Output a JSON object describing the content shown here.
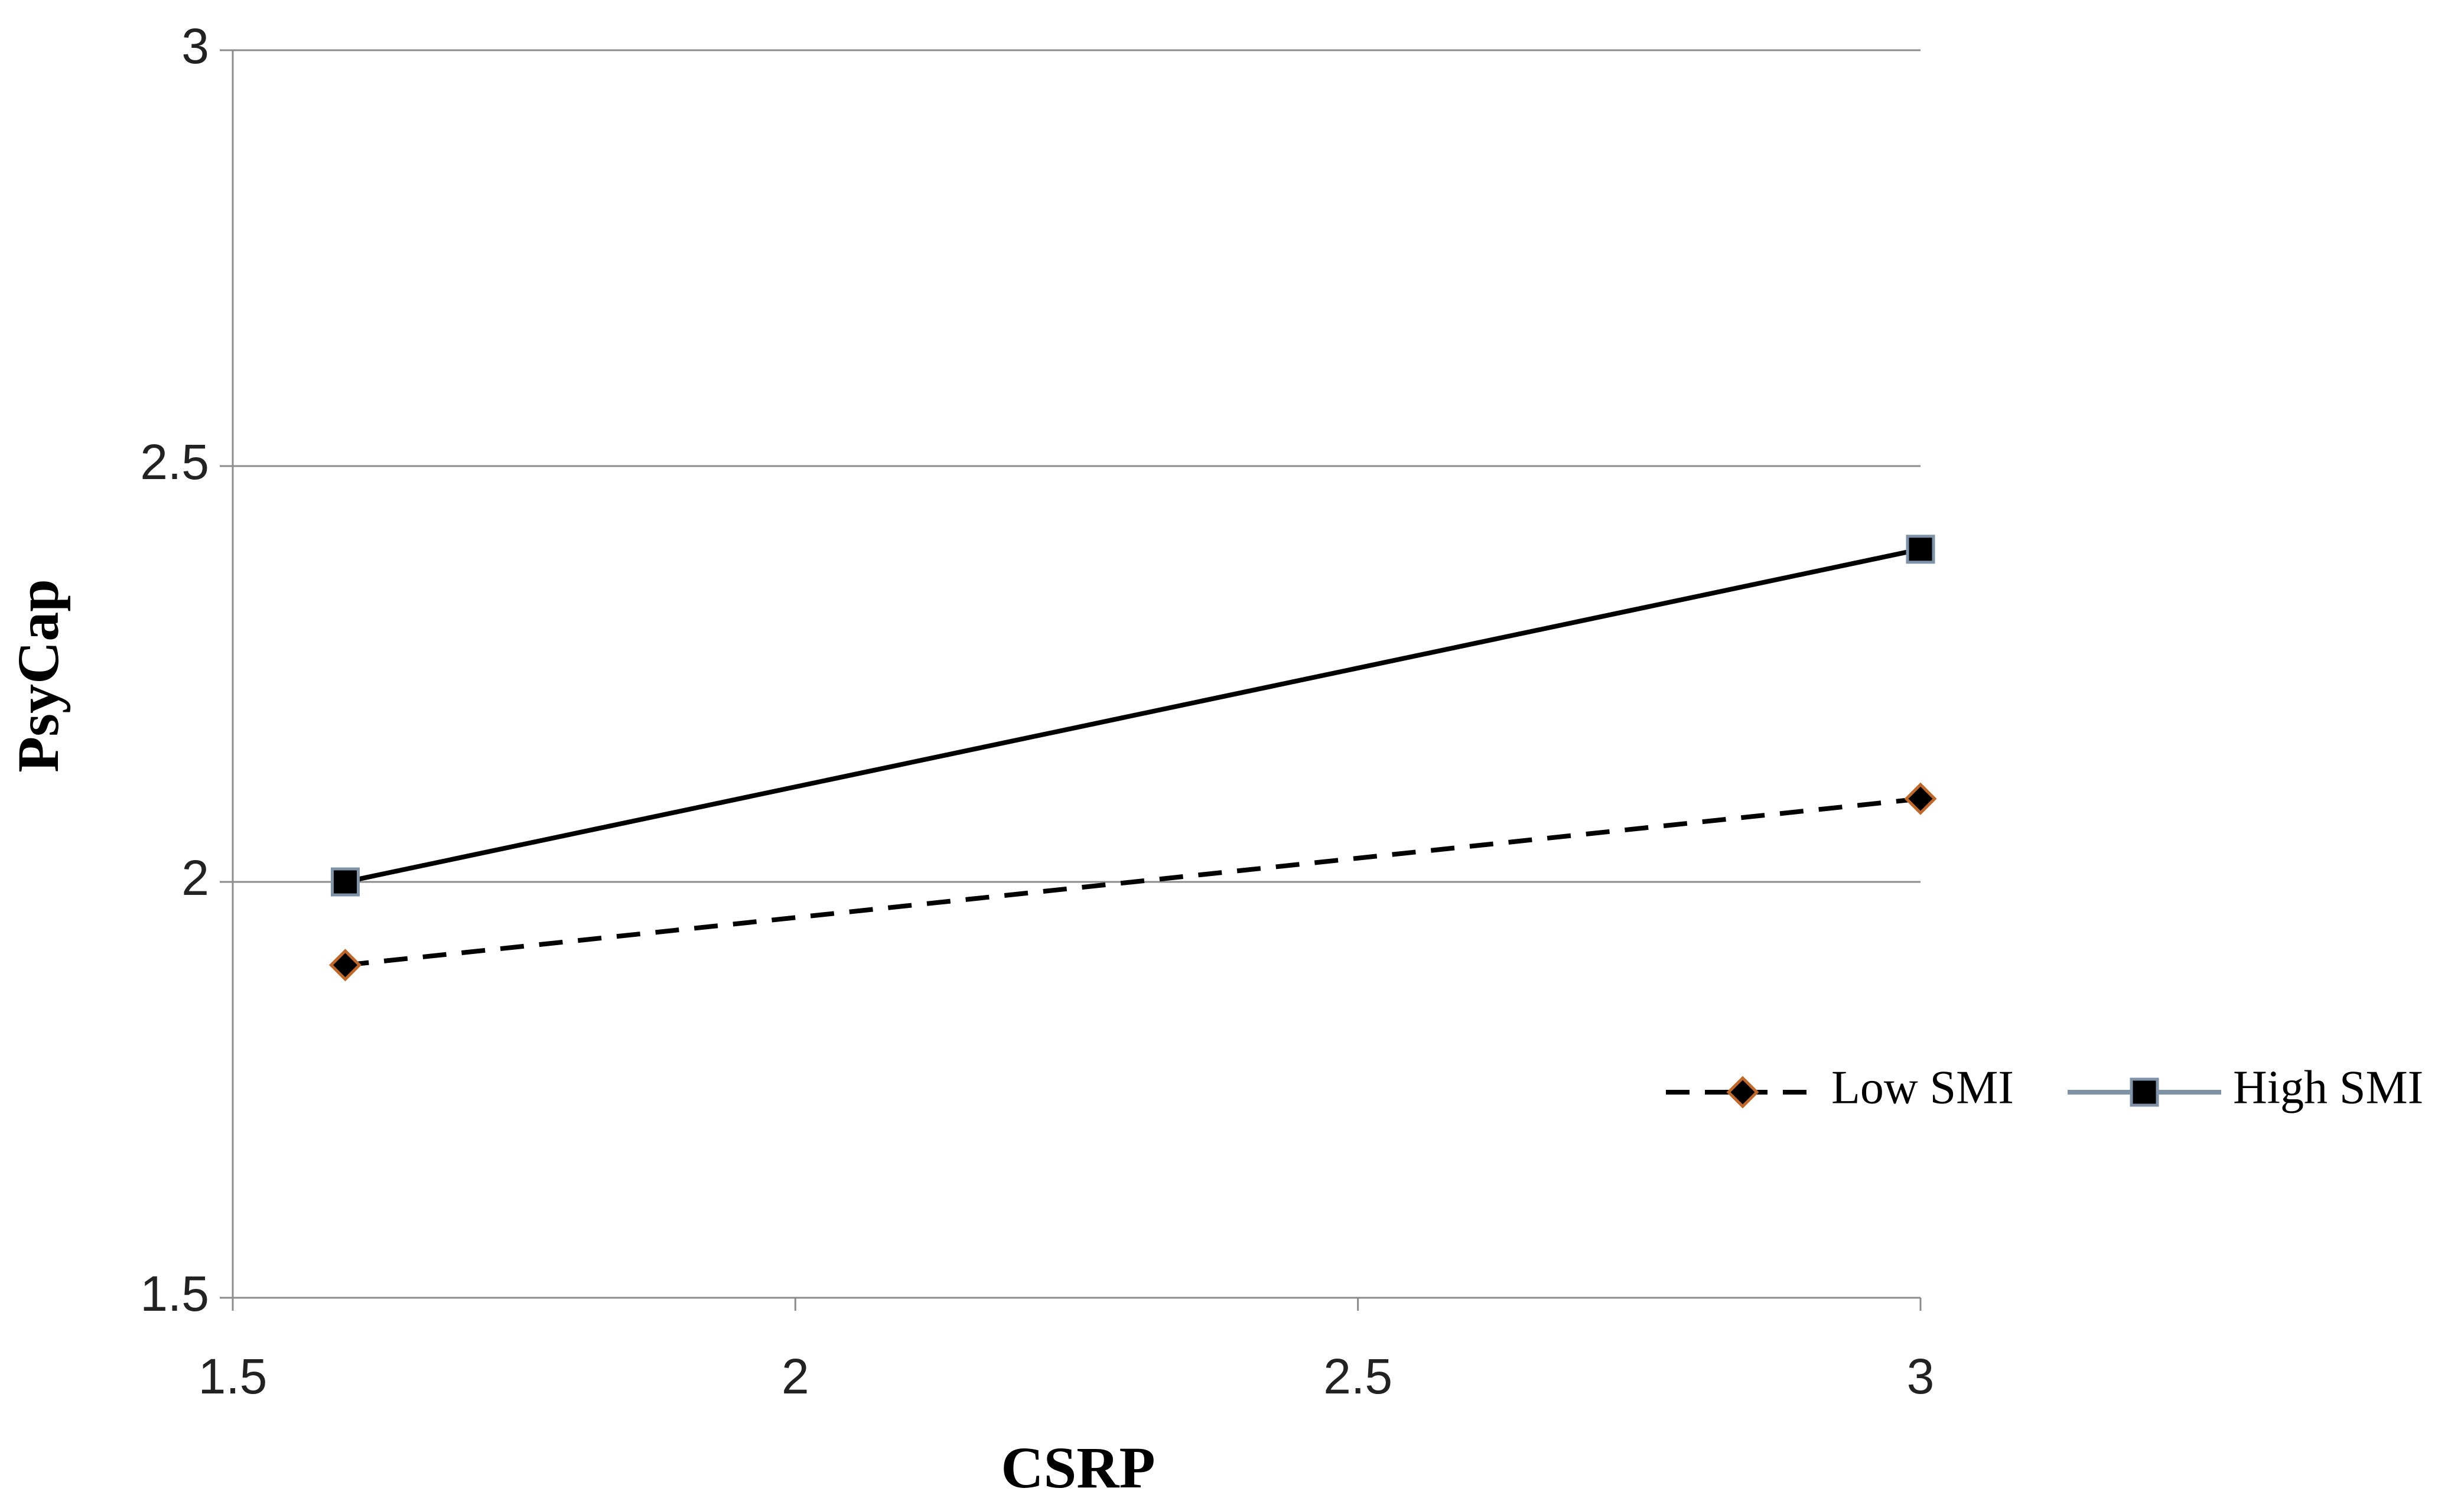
{
  "chart_data": {
    "type": "line",
    "x_label": "CSRP",
    "y_label": "PsyCap",
    "xlim": [
      1.5,
      3
    ],
    "xticks": [
      1.5,
      2,
      2.5,
      3
    ],
    "ylim": [
      1.5,
      3
    ],
    "yticks": [
      1.5,
      2,
      2.5,
      3
    ],
    "grid": true,
    "legend": "right",
    "series": [
      {
        "name": "Low SMI",
        "color": "#000000",
        "dashed": true,
        "marker": "diamond",
        "marker_edge_color": "#c0682a",
        "x": [
          1.6,
          3
        ],
        "values": [
          1.9,
          2.1
        ]
      },
      {
        "name": "High SMI",
        "color": "#000000",
        "dashed": false,
        "marker": "square",
        "marker_edge_color": "#7f93a8",
        "x": [
          1.6,
          3
        ],
        "values": [
          2.0,
          2.4
        ]
      }
    ]
  }
}
